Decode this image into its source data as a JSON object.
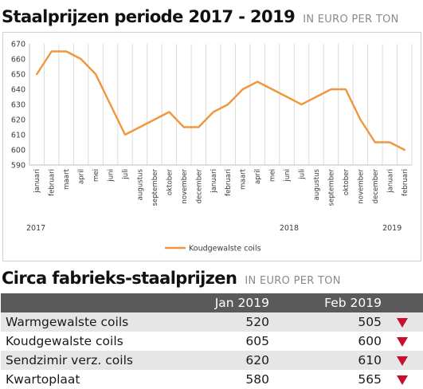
{
  "chart_section": {
    "title": "Staalprijzen periode 2017 - 2019",
    "unit": "IN EURO PER TON"
  },
  "chart_data": {
    "type": "line",
    "ylim": [
      590,
      670
    ],
    "yticks": [
      590,
      600,
      610,
      620,
      630,
      640,
      650,
      660,
      670
    ],
    "grid": "vertical",
    "legend_position": "bottom",
    "categories": [
      "januari",
      "februari",
      "maart",
      "april",
      "mei",
      "juni",
      "juli",
      "augustus",
      "september",
      "oktober",
      "november",
      "december",
      "januari",
      "februari",
      "maart",
      "april",
      "mei",
      "juni",
      "juli",
      "augustus",
      "september",
      "oktober",
      "november",
      "december",
      "januari",
      "februari"
    ],
    "year_labels": [
      {
        "label": "2017",
        "at_index": 0
      },
      {
        "label": "2018",
        "at_index": 17
      },
      {
        "label": "2019",
        "at_index": 24
      }
    ],
    "series": [
      {
        "name": "Koudgewalste coils",
        "color": "#f0963c",
        "values": [
          650,
          665,
          665,
          660,
          650,
          630,
          610,
          615,
          620,
          625,
          615,
          615,
          625,
          630,
          640,
          645,
          640,
          635,
          630,
          635,
          640,
          640,
          620,
          605,
          605,
          600
        ]
      }
    ]
  },
  "table_section": {
    "title": "Circa fabrieks-staalprijzen",
    "unit": "IN EURO PER TON",
    "columns": [
      "",
      "Jan 2019",
      "Feb 2019",
      ""
    ],
    "rows": [
      {
        "product": "Warmgewalste coils",
        "jan": "520",
        "feb": "505",
        "trend": "down-icon"
      },
      {
        "product": "Koudgewalste coils",
        "jan": "605",
        "feb": "600",
        "trend": "down-icon"
      },
      {
        "product": "Sendzimir verz. coils",
        "jan": "620",
        "feb": "610",
        "trend": "down-icon"
      },
      {
        "product": "Kwartoplaat",
        "jan": "580",
        "feb": "565",
        "trend": "down-icon"
      }
    ],
    "down_color": "#c8102e"
  }
}
